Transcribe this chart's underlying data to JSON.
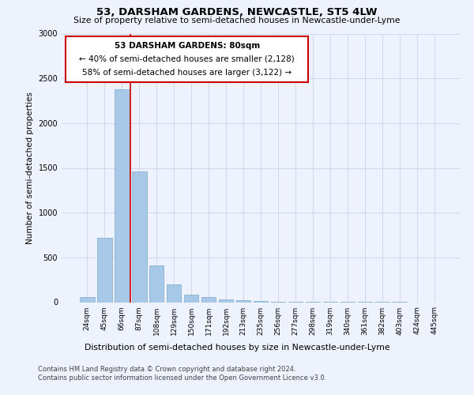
{
  "title": "53, DARSHAM GARDENS, NEWCASTLE, ST5 4LW",
  "subtitle": "Size of property relative to semi-detached houses in Newcastle-under-Lyme",
  "xlabel_bottom": "Distribution of semi-detached houses by size in Newcastle-under-Lyme",
  "ylabel": "Number of semi-detached properties",
  "footnote1": "Contains HM Land Registry data © Crown copyright and database right 2024.",
  "footnote2": "Contains public sector information licensed under the Open Government Licence v3.0.",
  "annotation_title": "53 DARSHAM GARDENS: 80sqm",
  "annotation_line2": "← 40% of semi-detached houses are smaller (2,128)",
  "annotation_line3": "58% of semi-detached houses are larger (3,122) →",
  "bar_color": "#a8c8e8",
  "bar_edge_color": "#7aaacc",
  "grid_color": "#d0d8ee",
  "annotation_box_edgecolor": "#cc0000",
  "vline_color": "#cc0000",
  "background_color": "#eef2fc",
  "categories": [
    "24sqm",
    "45sqm",
    "66sqm",
    "87sqm",
    "108sqm",
    "129sqm",
    "150sqm",
    "171sqm",
    "192sqm",
    "213sqm",
    "235sqm",
    "256sqm",
    "277sqm",
    "298sqm",
    "319sqm",
    "340sqm",
    "361sqm",
    "382sqm",
    "403sqm",
    "424sqm",
    "445sqm"
  ],
  "values": [
    60,
    720,
    2380,
    1460,
    410,
    200,
    85,
    55,
    30,
    20,
    15,
    8,
    5,
    3,
    2,
    2,
    1,
    1,
    1,
    0,
    0
  ],
  "ylim": [
    0,
    3000
  ],
  "yticks": [
    0,
    500,
    1000,
    1500,
    2000,
    2500,
    3000
  ],
  "vline_bar_index": 2.5
}
